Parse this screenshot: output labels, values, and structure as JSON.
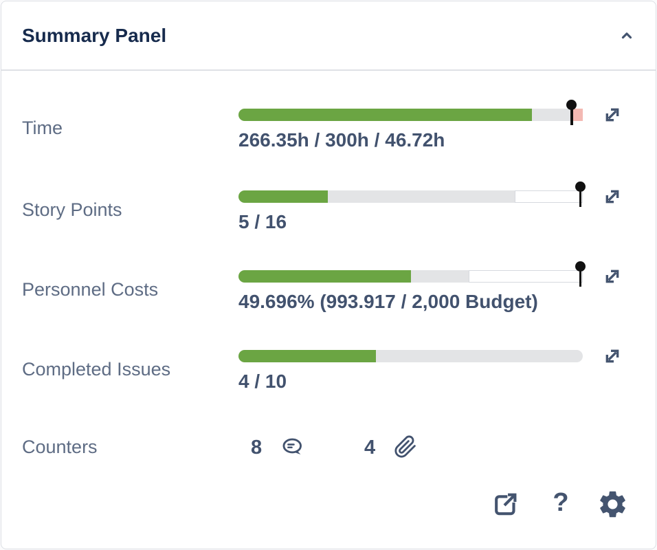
{
  "panel": {
    "title": "Summary Panel",
    "collapse_icon": "chevron-up-icon"
  },
  "colors": {
    "page_bg": "#FBFBFC",
    "panel_bg": "#FFFFFF",
    "border": "#DCDFE4",
    "divider": "#DFE1E6",
    "title_text": "#172B4D",
    "label_text": "#5E6C84",
    "value_text": "#42526E",
    "icon": "#44546F",
    "green": "#6BA543",
    "track": "#E3E4E6",
    "overflow_pink": "#F3B9B3",
    "remaining_white": "#FFFFFF",
    "remaining_border": "#D6D9DE",
    "pin": "#111111"
  },
  "rows": [
    {
      "label": "Time",
      "value": "266.35h / 300h / 46.72h",
      "bar": {
        "segments": [
          {
            "name": "logged",
            "color_key": "green",
            "width_pct": 85.2
          },
          {
            "name": "track",
            "color_key": "track",
            "width_pct": 11.6
          },
          {
            "name": "overflow",
            "color_key": "overflow_pink",
            "width_pct": 3.2
          }
        ],
        "pin_pct": 96.8
      }
    },
    {
      "label": "Story Points",
      "value": "5 / 16",
      "bar": {
        "segments": [
          {
            "name": "done",
            "color_key": "green",
            "width_pct": 26
          },
          {
            "name": "track",
            "color_key": "track",
            "width_pct": 54.3
          },
          {
            "name": "remaining",
            "color_key": "remaining_white",
            "width_pct": 19.7,
            "bordered": true
          }
        ],
        "pin_pct": 99.3
      }
    },
    {
      "label": "Personnel Costs",
      "value": "49.696% (993.917 / 2,000 Budget)",
      "bar": {
        "segments": [
          {
            "name": "spent",
            "color_key": "green",
            "width_pct": 50.1
          },
          {
            "name": "track",
            "color_key": "track",
            "width_pct": 16.8
          },
          {
            "name": "remaining",
            "color_key": "remaining_white",
            "width_pct": 33.1,
            "bordered": true
          }
        ],
        "pin_pct": 99.3
      }
    },
    {
      "label": "Completed Issues",
      "value": "4 / 10",
      "bar": {
        "segments": [
          {
            "name": "done",
            "color_key": "green",
            "width_pct": 40
          },
          {
            "name": "track",
            "color_key": "track",
            "width_pct": 60
          }
        ]
      }
    }
  ],
  "counters": {
    "label": "Counters",
    "items": [
      {
        "count": "8",
        "icon": "comment-icon"
      },
      {
        "count": "4",
        "icon": "attachment-icon"
      }
    ]
  },
  "footer": {
    "help_label": "?",
    "icons": [
      "open-in-new-tab-icon",
      "help-icon",
      "settings-icon"
    ]
  }
}
